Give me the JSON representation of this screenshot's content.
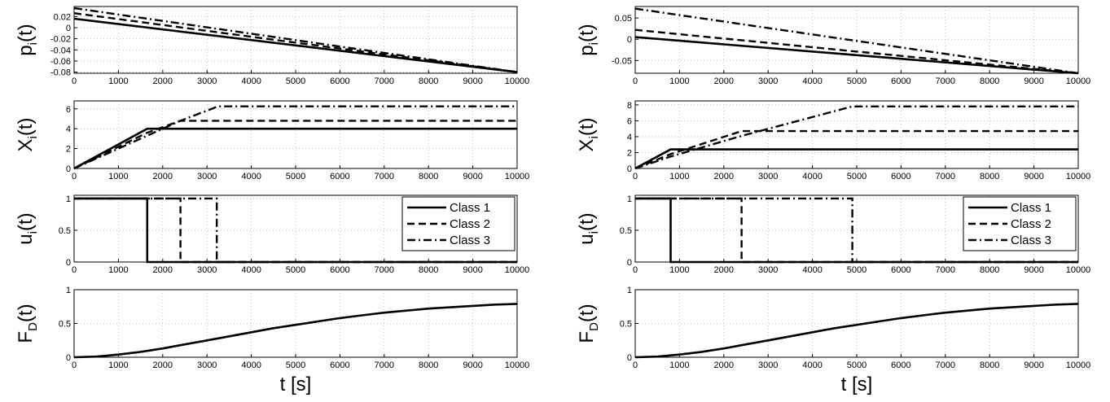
{
  "chart_data": [
    {
      "type": "line",
      "ylabel": "p",
      "ylabel_sub": "i",
      "ylabel_suffix": "(t)",
      "xlim": [
        0,
        10000
      ],
      "ylim": [
        -0.082,
        0.038
      ],
      "grid": true,
      "xticks": [
        "0",
        "1000",
        "2000",
        "3000",
        "4000",
        "5000",
        "6000",
        "7000",
        "8000",
        "9000",
        "10000"
      ],
      "yticks": [
        {
          "v": -0.08,
          "label": "-0.08"
        },
        {
          "v": -0.06,
          "label": "-0.06"
        },
        {
          "v": -0.04,
          "label": "-0.04"
        },
        {
          "v": -0.02,
          "label": "-0.02"
        },
        {
          "v": 0,
          "label": "0"
        },
        {
          "v": 0.02,
          "label": "0.02"
        }
      ],
      "series": [
        {
          "style": "solid",
          "x": [
            0,
            10000
          ],
          "y": [
            0.016,
            -0.08
          ]
        },
        {
          "style": "dashed",
          "x": [
            0,
            10000
          ],
          "y": [
            0.026,
            -0.08
          ]
        },
        {
          "style": "dashdot",
          "x": [
            0,
            10000
          ],
          "y": [
            0.035,
            -0.08
          ]
        }
      ]
    },
    {
      "type": "line",
      "ylabel": "X",
      "ylabel_sub": "i",
      "ylabel_suffix": "(t)",
      "xlim": [
        0,
        10000
      ],
      "ylim": [
        0,
        6.8
      ],
      "grid": true,
      "xticks": [
        "0",
        "1000",
        "2000",
        "3000",
        "4000",
        "5000",
        "6000",
        "7000",
        "8000",
        "9000",
        "10000"
      ],
      "yticks": [
        {
          "v": 0,
          "label": "0"
        },
        {
          "v": 2,
          "label": "2"
        },
        {
          "v": 4,
          "label": "4"
        },
        {
          "v": 6,
          "label": "6"
        }
      ],
      "series": [
        {
          "style": "solid",
          "x": [
            0,
            1650,
            10000
          ],
          "y": [
            0,
            4.0,
            4.0
          ]
        },
        {
          "style": "dashed",
          "x": [
            0,
            1650,
            2400,
            10000
          ],
          "y": [
            0,
            3.6,
            4.8,
            4.8
          ]
        },
        {
          "style": "dashdot",
          "x": [
            0,
            1650,
            2400,
            3250,
            10000
          ],
          "y": [
            0,
            3.3,
            4.8,
            6.25,
            6.25
          ]
        }
      ]
    },
    {
      "type": "line",
      "ylabel": "u",
      "ylabel_sub": "i",
      "ylabel_suffix": "(t)",
      "xlim": [
        0,
        10000
      ],
      "ylim": [
        0,
        1.05
      ],
      "grid": true,
      "xticks": [
        "0",
        "1000",
        "2000",
        "3000",
        "4000",
        "5000",
        "6000",
        "7000",
        "8000",
        "9000",
        "10000"
      ],
      "yticks": [
        {
          "v": 0,
          "label": "0"
        },
        {
          "v": 0.5,
          "label": "0.5"
        },
        {
          "v": 1,
          "label": "1"
        }
      ],
      "legend": {
        "placement": "top-right",
        "entries": [
          "Class 1",
          "Class 2",
          "Class 3"
        ]
      },
      "series": [
        {
          "style": "solid",
          "x": [
            0,
            1650,
            1650,
            10000
          ],
          "y": [
            1,
            1,
            0,
            0
          ]
        },
        {
          "style": "dashed",
          "x": [
            0,
            2400,
            2400,
            10000
          ],
          "y": [
            1,
            1,
            0,
            0
          ]
        },
        {
          "style": "dashdot",
          "x": [
            0,
            3220,
            3220,
            10000
          ],
          "y": [
            1,
            1,
            0,
            0
          ]
        }
      ]
    },
    {
      "type": "line",
      "ylabel": "F",
      "ylabel_sub": "D",
      "ylabel_suffix": "(t)",
      "xlabel": "t [s]",
      "xlim": [
        0,
        10000
      ],
      "ylim": [
        0,
        1
      ],
      "grid": true,
      "xticks": [
        "0",
        "1000",
        "2000",
        "3000",
        "4000",
        "5000",
        "6000",
        "7000",
        "8000",
        "9000",
        "10000"
      ],
      "yticks": [
        {
          "v": 0,
          "label": "0"
        },
        {
          "v": 0.5,
          "label": "0.5"
        },
        {
          "v": 1,
          "label": "1"
        }
      ],
      "series": [
        {
          "style": "solid",
          "x": [
            0,
            500,
            1000,
            1500,
            2000,
            2500,
            3000,
            3500,
            4000,
            4500,
            5000,
            5500,
            6000,
            6500,
            7000,
            7500,
            8000,
            8500,
            9000,
            9500,
            10000
          ],
          "y": [
            0,
            0.01,
            0.04,
            0.08,
            0.13,
            0.19,
            0.25,
            0.31,
            0.37,
            0.43,
            0.48,
            0.53,
            0.58,
            0.62,
            0.66,
            0.69,
            0.72,
            0.74,
            0.76,
            0.78,
            0.79
          ]
        }
      ]
    },
    {
      "type": "line",
      "ylabel": "p",
      "ylabel_sub": "i",
      "ylabel_suffix": "(t)",
      "xlim": [
        0,
        10000
      ],
      "ylim": [
        -0.08,
        0.077
      ],
      "grid": true,
      "xticks": [
        "0",
        "1000",
        "2000",
        "3000",
        "4000",
        "5000",
        "6000",
        "7000",
        "8000",
        "9000",
        "10000"
      ],
      "yticks": [
        {
          "v": -0.05,
          "label": "-0.05"
        },
        {
          "v": 0,
          "label": "0"
        },
        {
          "v": 0.05,
          "label": "0.05"
        }
      ],
      "series": [
        {
          "style": "solid",
          "x": [
            0,
            10000
          ],
          "y": [
            0.005,
            -0.08
          ]
        },
        {
          "style": "dashed",
          "x": [
            0,
            10000
          ],
          "y": [
            0.022,
            -0.08
          ]
        },
        {
          "style": "dashdot",
          "x": [
            0,
            10000
          ],
          "y": [
            0.072,
            -0.08
          ]
        }
      ]
    },
    {
      "type": "line",
      "ylabel": "X",
      "ylabel_sub": "i",
      "ylabel_suffix": "(t)",
      "xlim": [
        0,
        10000
      ],
      "ylim": [
        0,
        8.5
      ],
      "grid": true,
      "xticks": [
        "0",
        "1000",
        "2000",
        "3000",
        "4000",
        "5000",
        "6000",
        "7000",
        "8000",
        "9000",
        "10000"
      ],
      "yticks": [
        {
          "v": 0,
          "label": "0"
        },
        {
          "v": 2,
          "label": "2"
        },
        {
          "v": 4,
          "label": "4"
        },
        {
          "v": 6,
          "label": "6"
        },
        {
          "v": 8,
          "label": "8"
        }
      ],
      "series": [
        {
          "style": "solid",
          "x": [
            0,
            800,
            10000
          ],
          "y": [
            0,
            2.4,
            2.4
          ]
        },
        {
          "style": "dashed",
          "x": [
            0,
            800,
            2400,
            10000
          ],
          "y": [
            0,
            1.8,
            4.7,
            4.7
          ]
        },
        {
          "style": "dashdot",
          "x": [
            0,
            800,
            2400,
            4900,
            10000
          ],
          "y": [
            0,
            1.5,
            4.1,
            7.8,
            7.8
          ]
        }
      ]
    },
    {
      "type": "line",
      "ylabel": "u",
      "ylabel_sub": "i",
      "ylabel_suffix": "(t)",
      "xlim": [
        0,
        10000
      ],
      "ylim": [
        0,
        1.05
      ],
      "grid": true,
      "xticks": [
        "0",
        "1000",
        "2000",
        "3000",
        "4000",
        "5000",
        "6000",
        "7000",
        "8000",
        "9000",
        "10000"
      ],
      "yticks": [
        {
          "v": 0,
          "label": "0"
        },
        {
          "v": 0.5,
          "label": "0.5"
        },
        {
          "v": 1,
          "label": "1"
        }
      ],
      "legend": {
        "placement": "top-right",
        "entries": [
          "Class 1",
          "Class 2",
          "Class 3"
        ]
      },
      "series": [
        {
          "style": "solid",
          "x": [
            0,
            800,
            800,
            10000
          ],
          "y": [
            1,
            1,
            0,
            0
          ]
        },
        {
          "style": "dashed",
          "x": [
            0,
            2400,
            2400,
            10000
          ],
          "y": [
            1,
            1,
            0,
            0
          ]
        },
        {
          "style": "dashdot",
          "x": [
            0,
            4900,
            4900,
            10000
          ],
          "y": [
            1,
            1,
            0,
            0
          ]
        }
      ]
    },
    {
      "type": "line",
      "ylabel": "F",
      "ylabel_sub": "D",
      "ylabel_suffix": "(t)",
      "xlabel": "t [s]",
      "xlim": [
        0,
        10000
      ],
      "ylim": [
        0,
        1
      ],
      "grid": true,
      "xticks": [
        "0",
        "1000",
        "2000",
        "3000",
        "4000",
        "5000",
        "6000",
        "7000",
        "8000",
        "9000",
        "10000"
      ],
      "yticks": [
        {
          "v": 0,
          "label": "0"
        },
        {
          "v": 0.5,
          "label": "0.5"
        },
        {
          "v": 1,
          "label": "1"
        }
      ],
      "series": [
        {
          "style": "solid",
          "x": [
            0,
            500,
            1000,
            1500,
            2000,
            2500,
            3000,
            3500,
            4000,
            4500,
            5000,
            5500,
            6000,
            6500,
            7000,
            7500,
            8000,
            8500,
            9000,
            9500,
            10000
          ],
          "y": [
            0,
            0.01,
            0.04,
            0.08,
            0.13,
            0.19,
            0.25,
            0.31,
            0.37,
            0.43,
            0.48,
            0.53,
            0.58,
            0.62,
            0.66,
            0.69,
            0.72,
            0.74,
            0.76,
            0.78,
            0.79
          ]
        }
      ]
    }
  ]
}
